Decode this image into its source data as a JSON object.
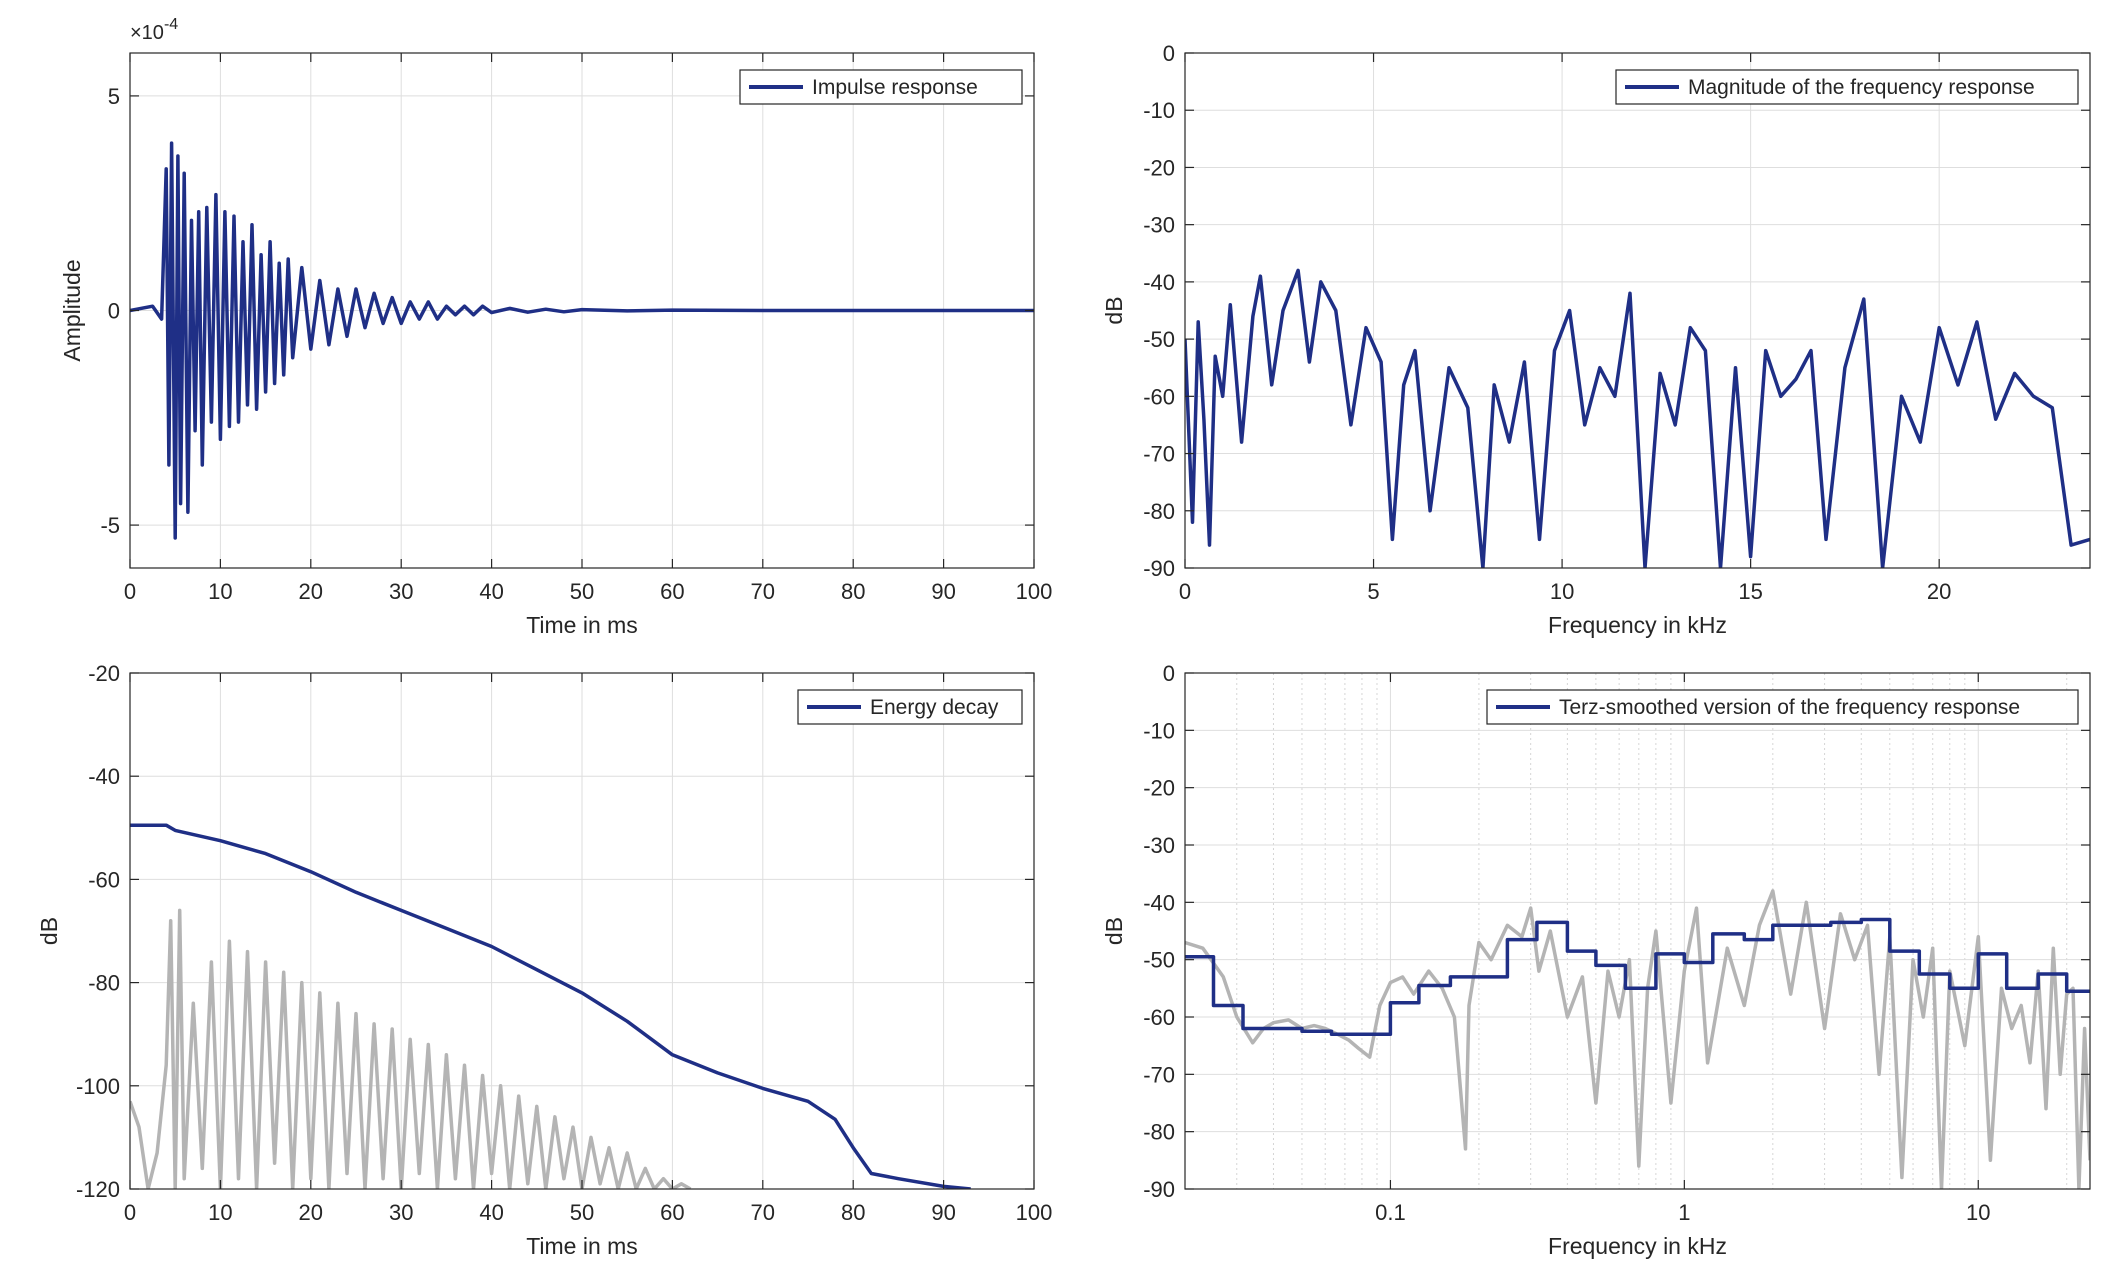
{
  "colors": {
    "series": "#1f2f86",
    "reference": "#b4b4b4",
    "grid": "#dedede",
    "minor_grid": "#d6d6d6",
    "axes": "#262626"
  },
  "chart_data": [
    {
      "type": "line",
      "xlabel": "Time in ms",
      "ylabel": "Amplitude",
      "xlim": [
        0,
        100
      ],
      "ylim": [
        -0.0006,
        0.0006
      ],
      "x_ticks": [
        0,
        10,
        20,
        30,
        40,
        50,
        60,
        70,
        80,
        90,
        100
      ],
      "x_tick_labels": [
        "0",
        "10",
        "20",
        "30",
        "40",
        "50",
        "60",
        "70",
        "80",
        "90",
        "100"
      ],
      "y_ticks": [
        -0.0005,
        0,
        0.0005
      ],
      "y_tick_labels": [
        "-5",
        "0",
        "5"
      ],
      "y_exponent_label": "×10",
      "y_exponent_power": "-4",
      "grid": true,
      "legend_position": "top-right",
      "series": [
        {
          "name": "Impulse response",
          "x": [
            0,
            2.5,
            3.5,
            4.0,
            4.3,
            4.6,
            5.0,
            5.3,
            5.6,
            6.0,
            6.4,
            6.8,
            7.2,
            7.6,
            8.0,
            8.5,
            9.0,
            9.5,
            10.0,
            10.5,
            11.0,
            11.5,
            12.0,
            12.5,
            13.0,
            13.5,
            14.0,
            14.5,
            15.0,
            15.5,
            16.0,
            16.5,
            17.0,
            17.5,
            18.0,
            19.0,
            20.0,
            21.0,
            22.0,
            23.0,
            24.0,
            25.0,
            26.0,
            27.0,
            28.0,
            29.0,
            30.0,
            31.0,
            32.0,
            33.0,
            34.0,
            35.0,
            36.0,
            37.0,
            38.0,
            39.0,
            40.0,
            42.0,
            44.0,
            46.0,
            48.0,
            50.0,
            55.0,
            60.0,
            70.0,
            80.0,
            90.0,
            100.0
          ],
          "y": [
            0,
            1e-05,
            -2e-05,
            0.00033,
            -0.00036,
            0.00039,
            -0.00053,
            0.00036,
            -0.00045,
            0.00032,
            -0.00047,
            0.00021,
            -0.00028,
            0.00023,
            -0.00036,
            0.00024,
            -0.00026,
            0.00027,
            -0.0003,
            0.00023,
            -0.00027,
            0.00022,
            -0.00026,
            0.00016,
            -0.00022,
            0.0002,
            -0.00023,
            0.00013,
            -0.00019,
            0.00016,
            -0.00017,
            0.00011,
            -0.00015,
            0.00012,
            -0.00011,
            0.0001,
            -9e-05,
            7e-05,
            -8e-05,
            5e-05,
            -6e-05,
            5e-05,
            -4e-05,
            4e-05,
            -3e-05,
            3e-05,
            -3e-05,
            2e-05,
            -2e-05,
            2e-05,
            -2e-05,
            1e-05,
            -1e-05,
            1e-05,
            -1e-05,
            1e-05,
            -5e-06,
            5e-06,
            -4e-06,
            3e-06,
            -3e-06,
            2e-06,
            -1e-06,
            1e-06,
            0,
            0,
            0,
            0
          ]
        }
      ]
    },
    {
      "type": "line",
      "xlabel": "Frequency in kHz",
      "ylabel": "dB",
      "xlim": [
        0,
        24
      ],
      "ylim": [
        -90,
        0
      ],
      "x_ticks": [
        0,
        5,
        10,
        15,
        20
      ],
      "x_tick_labels": [
        "0",
        "5",
        "10",
        "15",
        "20"
      ],
      "y_ticks": [
        0,
        -10,
        -20,
        -30,
        -40,
        -50,
        -60,
        -70,
        -80,
        -90
      ],
      "y_tick_labels": [
        "0",
        "-10",
        "-20",
        "-30",
        "-40",
        "-50",
        "-60",
        "-70",
        "-80",
        "-90"
      ],
      "grid": true,
      "legend_position": "top-right",
      "series": [
        {
          "name": "Magnitude of the frequency response",
          "x": [
            0,
            0.2,
            0.35,
            0.5,
            0.65,
            0.8,
            1.0,
            1.2,
            1.5,
            1.8,
            2.0,
            2.3,
            2.6,
            3.0,
            3.3,
            3.6,
            4.0,
            4.4,
            4.8,
            5.2,
            5.5,
            5.8,
            6.1,
            6.5,
            7.0,
            7.5,
            7.9,
            8.2,
            8.6,
            9.0,
            9.4,
            9.8,
            10.2,
            10.6,
            11.0,
            11.4,
            11.8,
            12.2,
            12.6,
            13.0,
            13.4,
            13.8,
            14.2,
            14.6,
            15.0,
            15.4,
            15.8,
            16.2,
            16.6,
            17.0,
            17.5,
            18.0,
            18.5,
            19.0,
            19.5,
            20.0,
            20.5,
            21.0,
            21.5,
            22.0,
            22.5,
            23.0,
            23.5,
            24.0
          ],
          "y": [
            -50,
            -82,
            -47,
            -64,
            -86,
            -53,
            -60,
            -44,
            -68,
            -46,
            -39,
            -58,
            -45,
            -38,
            -54,
            -40,
            -45,
            -65,
            -48,
            -54,
            -85,
            -58,
            -52,
            -80,
            -55,
            -62,
            -90,
            -58,
            -68,
            -54,
            -85,
            -52,
            -45,
            -65,
            -55,
            -60,
            -42,
            -90,
            -56,
            -65,
            -48,
            -52,
            -90,
            -55,
            -88,
            -52,
            -60,
            -57,
            -52,
            -85,
            -55,
            -43,
            -90,
            -60,
            -68,
            -48,
            -58,
            -47,
            -64,
            -56,
            -60,
            -62,
            -86,
            -85
          ]
        }
      ]
    },
    {
      "type": "line",
      "xlabel": "Time in ms",
      "ylabel": "dB",
      "xlim": [
        0,
        100
      ],
      "ylim": [
        -120,
        -20
      ],
      "x_ticks": [
        0,
        10,
        20,
        30,
        40,
        50,
        60,
        70,
        80,
        90,
        100
      ],
      "x_tick_labels": [
        "0",
        "10",
        "20",
        "30",
        "40",
        "50",
        "60",
        "70",
        "80",
        "90",
        "100"
      ],
      "y_ticks": [
        -20,
        -40,
        -60,
        -80,
        -100,
        -120
      ],
      "y_tick_labels": [
        "-20",
        "-40",
        "-60",
        "-80",
        "-100",
        "-120"
      ],
      "grid": true,
      "legend_position": "top-right",
      "series": [
        {
          "name": "Energy decay",
          "x": [
            0,
            4,
            5,
            10,
            15,
            20,
            25,
            30,
            35,
            40,
            45,
            50,
            55,
            60,
            65,
            70,
            75,
            78,
            80,
            82,
            85,
            90,
            93
          ],
          "y": [
            -49.5,
            -49.5,
            -50.5,
            -52.5,
            -55,
            -58.5,
            -62.5,
            -66,
            -69.5,
            -73,
            -77.5,
            -82,
            -87.5,
            -94,
            -97.5,
            -100.5,
            -103,
            -106.5,
            -112,
            -117,
            -118,
            -119.5,
            -120
          ]
        },
        {
          "name": "",
          "x": [
            0,
            1,
            2,
            3,
            4,
            4.5,
            5,
            5.5,
            6,
            7,
            8,
            9,
            10,
            11,
            12,
            13,
            14,
            15,
            16,
            17,
            18,
            19,
            20,
            21,
            22,
            23,
            24,
            25,
            26,
            27,
            28,
            29,
            30,
            31,
            32,
            33,
            34,
            35,
            36,
            37,
            38,
            39,
            40,
            41,
            42,
            43,
            44,
            45,
            46,
            47,
            48,
            49,
            50,
            51,
            52,
            53,
            54,
            55,
            56,
            57,
            58,
            59,
            60,
            61,
            62
          ],
          "y": [
            -103,
            -108,
            -120,
            -113,
            -96,
            -68,
            -120,
            -66,
            -118,
            -84,
            -116,
            -76,
            -120,
            -72,
            -118,
            -74,
            -120,
            -76,
            -115,
            -78,
            -120,
            -80,
            -118,
            -82,
            -120,
            -84,
            -117,
            -86,
            -120,
            -88,
            -118,
            -89,
            -120,
            -91,
            -117,
            -92,
            -120,
            -94,
            -118,
            -96,
            -120,
            -98,
            -117,
            -100,
            -120,
            -102,
            -119,
            -104,
            -120,
            -106,
            -118,
            -108,
            -120,
            -110,
            -119,
            -112,
            -120,
            -113,
            -120,
            -116,
            -120,
            -118,
            -120,
            -119,
            -120
          ]
        }
      ]
    },
    {
      "type": "line",
      "xlabel": "Frequency in kHz",
      "ylabel": "dB",
      "x_scale": "log",
      "xlim": [
        0.02,
        24
      ],
      "ylim": [
        -90,
        0
      ],
      "x_ticks": [
        0.1,
        1,
        10
      ],
      "x_tick_labels": [
        "0.1",
        "1",
        "10"
      ],
      "y_ticks": [
        0,
        -10,
        -20,
        -30,
        -40,
        -50,
        -60,
        -70,
        -80,
        -90
      ],
      "y_tick_labels": [
        "0",
        "-10",
        "-20",
        "-30",
        "-40",
        "-50",
        "-60",
        "-70",
        "-80",
        "-90"
      ],
      "grid": true,
      "legend_position": "top-right",
      "series": [
        {
          "name": "Terz-smoothed version of the frequency response",
          "x": [
            0.02,
            0.025,
            0.025,
            0.0315,
            0.0315,
            0.04,
            0.04,
            0.05,
            0.05,
            0.063,
            0.063,
            0.08,
            0.08,
            0.1,
            0.1,
            0.125,
            0.125,
            0.16,
            0.16,
            0.2,
            0.2,
            0.25,
            0.25,
            0.315,
            0.315,
            0.4,
            0.4,
            0.5,
            0.5,
            0.63,
            0.63,
            0.8,
            0.8,
            1.0,
            1.0,
            1.25,
            1.25,
            1.6,
            1.6,
            2.0,
            2.0,
            2.5,
            2.5,
            3.15,
            3.15,
            4.0,
            4.0,
            5.0,
            5.0,
            6.3,
            6.3,
            8.0,
            8.0,
            10.0,
            10.0,
            12.5,
            12.5,
            16.0,
            16.0,
            20.0,
            20.0,
            24.0
          ],
          "y": [
            -49.5,
            -49.5,
            -58,
            -58,
            -62,
            -62,
            -62,
            -62,
            -62.5,
            -62.5,
            -63,
            -63,
            -63,
            -63,
            -57.5,
            -57.5,
            -54.5,
            -54.5,
            -53,
            -53,
            -53,
            -53,
            -46.5,
            -46.5,
            -43.5,
            -43.5,
            -48.5,
            -48.5,
            -51,
            -51,
            -55,
            -55,
            -49,
            -49,
            -50.5,
            -50.5,
            -45.5,
            -45.5,
            -46.5,
            -46.5,
            -44,
            -44,
            -44,
            -44,
            -43.5,
            -43.5,
            -43,
            -43,
            -48.5,
            -48.5,
            -52.5,
            -52.5,
            -55,
            -55,
            -49,
            -49,
            -55,
            -55,
            -52.5,
            -52.5,
            -55.5,
            -55.5
          ]
        },
        {
          "name": "",
          "x": [
            0.02,
            0.023,
            0.027,
            0.03,
            0.034,
            0.037,
            0.04,
            0.045,
            0.05,
            0.055,
            0.06,
            0.066,
            0.072,
            0.078,
            0.085,
            0.092,
            0.1,
            0.11,
            0.12,
            0.135,
            0.15,
            0.165,
            0.18,
            0.185,
            0.2,
            0.22,
            0.25,
            0.28,
            0.3,
            0.32,
            0.35,
            0.4,
            0.45,
            0.5,
            0.55,
            0.6,
            0.65,
            0.7,
            0.75,
            0.8,
            0.9,
            1.0,
            1.1,
            1.2,
            1.4,
            1.6,
            1.8,
            2.0,
            2.3,
            2.6,
            3.0,
            3.4,
            3.8,
            4.2,
            4.6,
            5.0,
            5.5,
            6.0,
            6.5,
            7.0,
            7.5,
            8.0,
            9.0,
            10.0,
            11.0,
            12.0,
            13.0,
            14.0,
            15.0,
            16.0,
            17.0,
            18.0,
            19.0,
            20.0,
            21.0,
            22.0,
            23.0,
            24.0
          ],
          "y": [
            -47,
            -48,
            -53,
            -60,
            -64.5,
            -62,
            -61,
            -60.5,
            -62,
            -61.5,
            -62,
            -63,
            -64,
            -65.5,
            -67,
            -58,
            -54,
            -53,
            -56,
            -52,
            -55,
            -60,
            -83,
            -58,
            -47,
            -50,
            -44,
            -46,
            -41,
            -52,
            -45,
            -60,
            -53,
            -75,
            -52,
            -60,
            -50,
            -86,
            -55,
            -45,
            -75,
            -52,
            -41,
            -68,
            -48,
            -58,
            -44,
            -38,
            -56,
            -40,
            -62,
            -42,
            -50,
            -44,
            -70,
            -46,
            -88,
            -50,
            -60,
            -48,
            -90,
            -52,
            -65,
            -46,
            -85,
            -55,
            -62,
            -58,
            -68,
            -52,
            -76,
            -48,
            -70,
            -56,
            -55,
            -90,
            -62,
            -85
          ]
        }
      ]
    }
  ]
}
